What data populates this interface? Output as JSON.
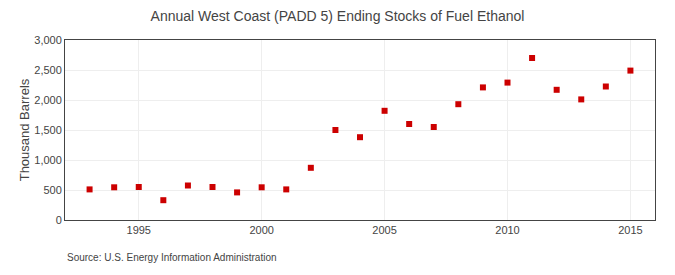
{
  "chart_data": {
    "type": "scatter",
    "title": "Annual West Coast (PADD 5) Ending Stocks of Fuel Ethanol",
    "ylabel": "Thousand Barrels",
    "annotations": [
      "Source: U.S. Energy Information Administration"
    ],
    "x": [
      1993,
      1994,
      1995,
      1996,
      1997,
      1998,
      1999,
      2000,
      2001,
      2002,
      2003,
      2004,
      2005,
      2006,
      2007,
      2008,
      2009,
      2010,
      2011,
      2012,
      2013,
      2014,
      2015
    ],
    "values": [
      510,
      545,
      550,
      330,
      575,
      550,
      460,
      545,
      510,
      870,
      1500,
      1380,
      1820,
      1600,
      1550,
      1930,
      2210,
      2290,
      2700,
      2170,
      2010,
      2225,
      2490
    ],
    "color": "#cc0000",
    "marker": "square",
    "xlim": [
      1992,
      2016
    ],
    "ylim": [
      0,
      3000
    ],
    "xticks": [
      1995,
      2000,
      2005,
      2010,
      2015
    ],
    "yticks": [
      0,
      500,
      {
        "value": 1000,
        "label": "1,000"
      },
      {
        "value": 1500,
        "label": "1,500"
      },
      {
        "value": 2000,
        "label": "2,000"
      },
      {
        "value": 2500,
        "label": "2,500"
      },
      {
        "value": 3000,
        "label": "3,000"
      }
    ],
    "grid": true
  }
}
